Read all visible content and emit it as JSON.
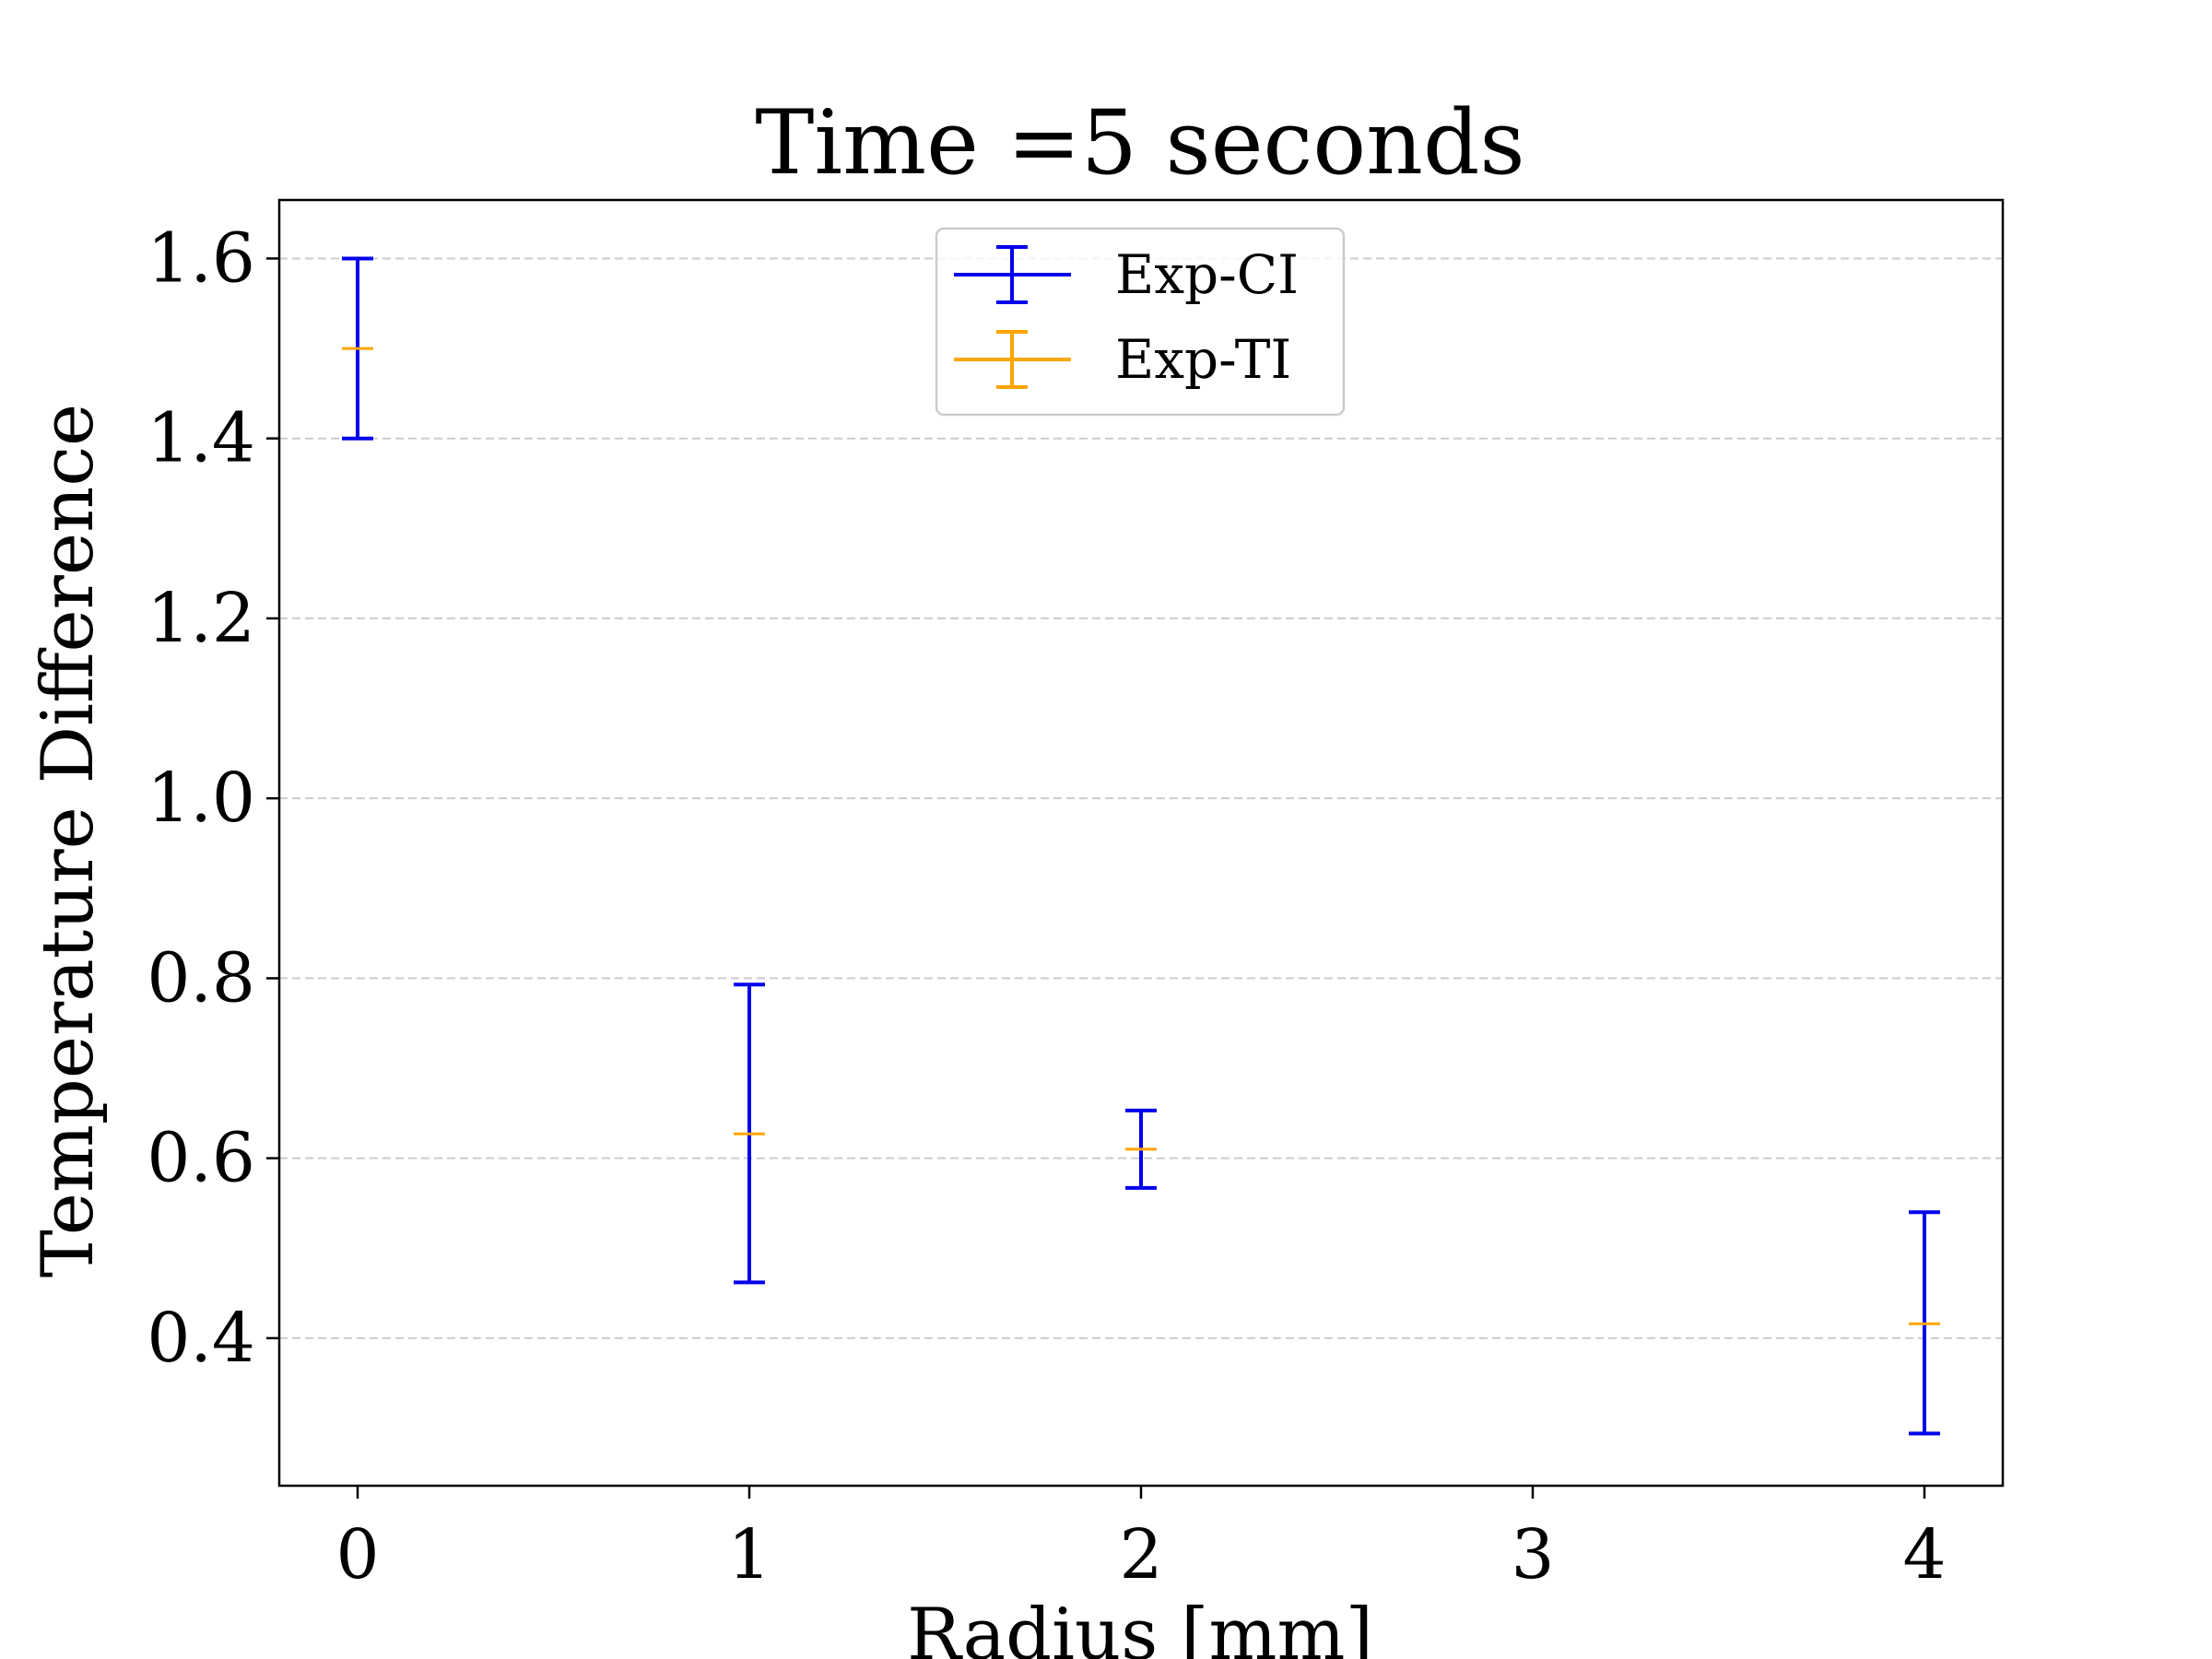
{
  "chart_data": {
    "type": "errorbar",
    "title": "Time =5 seconds",
    "xlabel": "Radius [mm]",
    "ylabel": "Temperature Difference",
    "xlim": [
      -0.2,
      4.2
    ],
    "ylim": [
      0.236,
      1.665
    ],
    "xticks": [
      0,
      1,
      2,
      3,
      4
    ],
    "xtick_labels": [
      "0",
      "1",
      "2",
      "3",
      "4"
    ],
    "yticks": [
      0.4,
      0.6,
      0.8,
      1.0,
      1.2,
      1.4,
      1.6
    ],
    "ytick_labels": [
      "0.4",
      "0.6",
      "0.8",
      "1.0",
      "1.2",
      "1.4",
      "1.6"
    ],
    "grid": {
      "axis": "y",
      "style": "dashed",
      "color": "#cccccc"
    },
    "legend": {
      "position": "upper center"
    },
    "series": [
      {
        "name": "Exp-CI",
        "color": "#0000ee",
        "x": [
          0,
          1,
          2,
          4
        ],
        "y": [
          1.5,
          0.627,
          0.61,
          0.416
        ],
        "yerr_low": [
          1.4,
          0.462,
          0.567,
          0.294
        ],
        "yerr_high": [
          1.6,
          0.793,
          0.653,
          0.54
        ],
        "show_marker": false,
        "cap_scale": 1.0
      },
      {
        "name": "Exp-TI",
        "color": "#ffa500",
        "x": [
          0,
          1,
          2,
          4
        ],
        "y": [
          1.5,
          0.627,
          0.61,
          0.416
        ],
        "yerr_low": [
          1.5,
          0.627,
          0.61,
          0.416
        ],
        "yerr_high": [
          1.5,
          0.627,
          0.61,
          0.416
        ],
        "show_marker": false,
        "cap_scale": 1.0
      }
    ]
  }
}
